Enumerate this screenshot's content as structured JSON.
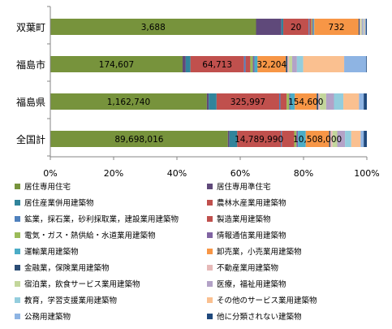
{
  "chart_data": {
    "type": "bar",
    "orientation": "horizontal",
    "stacked": "percent",
    "categories": [
      "双葉町",
      "福島市",
      "福島県",
      "全国計"
    ],
    "xlabel": "",
    "ylabel": "",
    "xlim": [
      0,
      100
    ],
    "x_ticks": [
      "0%",
      "20%",
      "40%",
      "60%",
      "80%",
      "100%"
    ],
    "grid": false,
    "legend_position": "bottom",
    "series": [
      {
        "name": "居住専用住宅",
        "color": "#77933C",
        "shares": [
          65.0,
          42.0,
          50.0,
          57.0
        ],
        "labels": [
          "3,688",
          "174,607",
          "1,162,740",
          "89,698,016"
        ]
      },
      {
        "name": "居住専用準住宅",
        "color": "#5F497A",
        "shares": [
          8.0,
          1.0,
          0.6,
          0.5
        ],
        "labels": [
          "",
          "",
          "",
          ""
        ]
      },
      {
        "name": "居住産業併用建築物",
        "color": "#31849B",
        "shares": [
          0.6,
          1.5,
          2.5,
          2.5
        ],
        "labels": [
          "",
          "",
          "",
          ""
        ]
      },
      {
        "name": "農林水産業用建築物",
        "color": "#C0504D",
        "shares": [
          8.0,
          17.0,
          20.0,
          14.0
        ],
        "labels": [
          "20",
          "64,713",
          "325,997",
          "14,789,990"
        ]
      },
      {
        "name": "鉱業，採石業，砂利採取業，建設業用建築物",
        "color": "#4F81BD",
        "shares": [
          0.3,
          0.5,
          0.4,
          0.3
        ],
        "labels": [
          "",
          "",
          "",
          ""
        ]
      },
      {
        "name": "製造業用建築物",
        "color": "#C0504D",
        "shares": [
          0.6,
          1.5,
          2.0,
          4.0
        ],
        "labels": [
          "",
          "",
          "",
          ""
        ]
      },
      {
        "name": "電気・ガス・熱供給・水道業用建築物",
        "color": "#9BBB59",
        "shares": [
          0.3,
          0.8,
          0.8,
          0.7
        ],
        "labels": [
          "",
          "",
          "",
          ""
        ]
      },
      {
        "name": "情報通信業用建築物",
        "color": "#8064A2",
        "shares": [
          0.3,
          0.5,
          0.3,
          0.5
        ],
        "labels": [
          "",
          "",
          "",
          ""
        ]
      },
      {
        "name": "運輸業用建築物",
        "color": "#4BACC6",
        "shares": [
          0.3,
          1.0,
          1.5,
          2.5
        ],
        "labels": [
          "",
          "",
          "",
          ""
        ]
      },
      {
        "name": "卸売業，小売業用建築物",
        "color": "#F79646",
        "shares": [
          14.0,
          9.0,
          7.0,
          7.5
        ],
        "labels": [
          "732",
          "32,204",
          "154,600",
          "10,508,000"
        ]
      },
      {
        "name": "金融業，保険業用建築物",
        "color": "#2C4D75",
        "shares": [
          0.3,
          0.5,
          0.5,
          0.4
        ],
        "labels": [
          "",
          "",
          "",
          ""
        ]
      },
      {
        "name": "不動産業用建築物",
        "color": "#E6B9B8",
        "shares": [
          0.3,
          0.5,
          0.5,
          0.7
        ],
        "labels": [
          "",
          "",
          "",
          ""
        ]
      },
      {
        "name": "宿泊業，飲食サービス業用建築物",
        "color": "#C3D69B",
        "shares": [
          0.4,
          1.0,
          2.0,
          1.5
        ],
        "labels": [
          "",
          "",
          "",
          ""
        ]
      },
      {
        "name": "医療，福祉用建築物",
        "color": "#B3A2C7",
        "shares": [
          0.4,
          1.5,
          2.5,
          2.5
        ],
        "labels": [
          "",
          "",
          "",
          ""
        ]
      },
      {
        "name": "教育，学習支援業用建築物",
        "color": "#93CDDD",
        "shares": [
          0.3,
          2.0,
          3.0,
          2.0
        ],
        "labels": [
          "",
          "",
          "",
          ""
        ]
      },
      {
        "name": "その他のサービス業用建築物",
        "color": "#FAC090",
        "shares": [
          0.3,
          13.0,
          5.0,
          3.0
        ],
        "labels": [
          "",
          "",
          "",
          ""
        ]
      },
      {
        "name": "公務用建築物",
        "color": "#8EB4E3",
        "shares": [
          0.3,
          7.0,
          1.5,
          1.0
        ],
        "labels": [
          "",
          "",
          "",
          ""
        ]
      },
      {
        "name": "他に分類されない建築物",
        "color": "#1F497D",
        "shares": [
          0.3,
          0.2,
          1.0,
          1.0
        ],
        "labels": [
          "",
          "",
          "",
          ""
        ]
      }
    ]
  }
}
